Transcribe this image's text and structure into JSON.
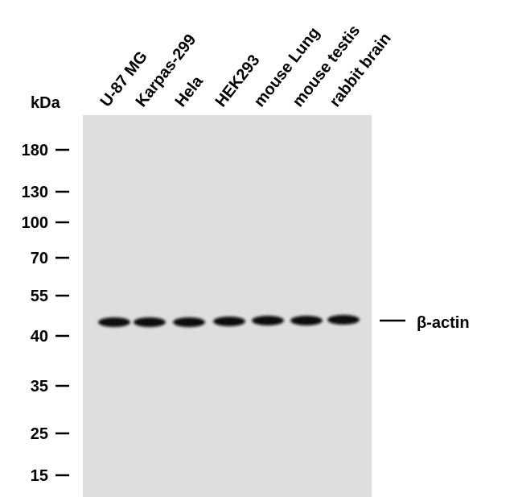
{
  "unit_label": "kDa",
  "lanes": [
    "U-87 MG",
    "Karpas-299",
    "Hela",
    "HEK293",
    "mouse Lung",
    "mouse testis",
    "rabbit brain"
  ],
  "markers": [
    "180",
    "130",
    "100",
    "70",
    "55",
    "40",
    "35",
    "25",
    "15"
  ],
  "band_label": "β-actin"
}
